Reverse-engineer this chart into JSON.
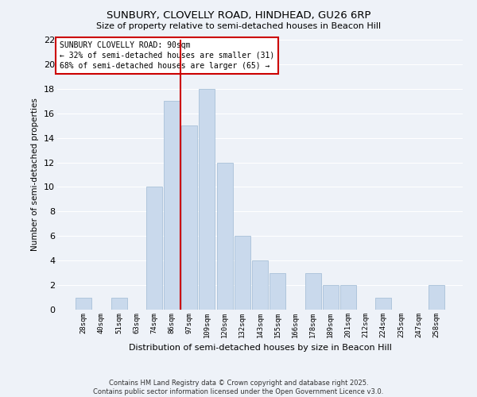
{
  "title1": "SUNBURY, CLOVELLY ROAD, HINDHEAD, GU26 6RP",
  "title2": "Size of property relative to semi-detached houses in Beacon Hill",
  "xlabel": "Distribution of semi-detached houses by size in Beacon Hill",
  "ylabel": "Number of semi-detached properties",
  "categories": [
    "28sqm",
    "40sqm",
    "51sqm",
    "63sqm",
    "74sqm",
    "86sqm",
    "97sqm",
    "109sqm",
    "120sqm",
    "132sqm",
    "143sqm",
    "155sqm",
    "166sqm",
    "178sqm",
    "189sqm",
    "201sqm",
    "212sqm",
    "224sqm",
    "235sqm",
    "247sqm",
    "258sqm"
  ],
  "values": [
    1,
    0,
    1,
    0,
    10,
    17,
    15,
    18,
    12,
    6,
    4,
    3,
    0,
    3,
    2,
    2,
    0,
    1,
    0,
    0,
    2
  ],
  "bar_color": "#c9d9ec",
  "bar_edge_color": "#a8c0d8",
  "vline_x_index": 6,
  "vline_color": "#cc0000",
  "ylim": [
    0,
    22
  ],
  "yticks": [
    0,
    2,
    4,
    6,
    8,
    10,
    12,
    14,
    16,
    18,
    20,
    22
  ],
  "annotation_title": "SUNBURY CLOVELLY ROAD: 90sqm",
  "annotation_line1": "← 32% of semi-detached houses are smaller (31)",
  "annotation_line2": "68% of semi-detached houses are larger (65) →",
  "annotation_box_color": "#ffffff",
  "annotation_box_edge_color": "#cc0000",
  "footer_line1": "Contains HM Land Registry data © Crown copyright and database right 2025.",
  "footer_line2": "Contains public sector information licensed under the Open Government Licence v3.0.",
  "background_color": "#eef2f8",
  "grid_color": "#ffffff"
}
